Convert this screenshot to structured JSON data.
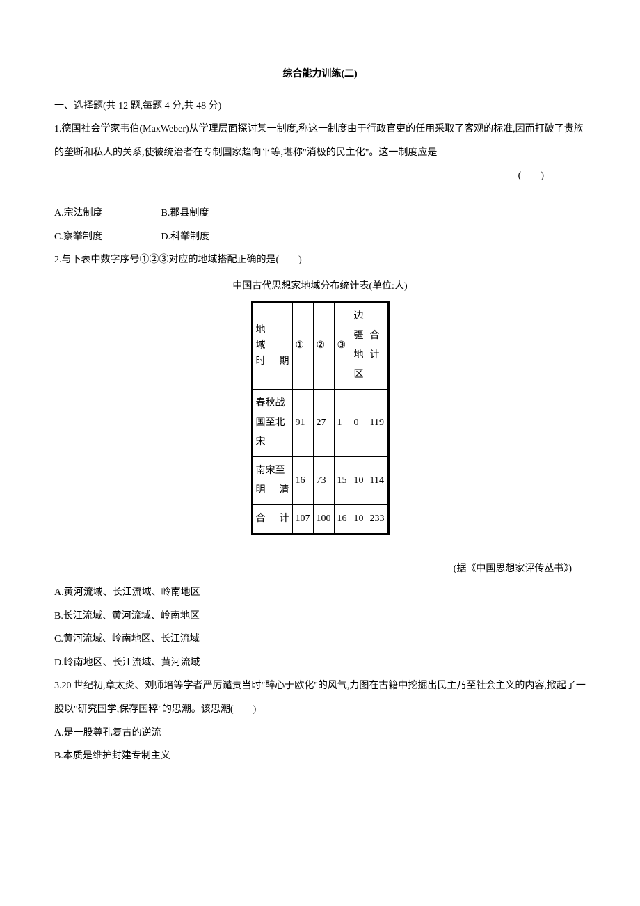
{
  "title": "综合能力训练(二)",
  "section1": "一、选择题(共 12 题,每题 4 分,共 48 分)",
  "q1": {
    "stem": "1.德国社会学家韦伯(MaxWeber)从学理层面探讨某一制度,称这一制度由于行政官吏的任用采取了客观的标准,因而打破了贵族的垄断和私人的关系,使被统治者在专制国家趋向平等,堪称\"消极的民主化\"。这一制度应是",
    "bracket": "(　　)",
    "optA": "A.宗法制度",
    "optB": "B.郡县制度",
    "optC": "C.察举制度",
    "optD": "D.科举制度"
  },
  "q2": {
    "stem": "2.与下表中数字序号①②③对应的地域搭配正确的是(　　)",
    "caption": "中国古代思想家地域分布统计表(单位:人)",
    "header": {
      "diag_top": "地",
      "diag_bottom_1": "域",
      "diag_bottom_2": "时期",
      "c1": "①",
      "c2": "②",
      "c3": "③",
      "c4": "边疆地区",
      "c5": "合计"
    },
    "rows": [
      {
        "label": "春秋战国至北宋",
        "c1": "91",
        "c2": "27",
        "c3": "1",
        "c4": "0",
        "c5": "119"
      },
      {
        "label": "南宋至明清",
        "c1": "16",
        "c2": "73",
        "c3": "15",
        "c4": "10",
        "c5": "114"
      },
      {
        "label": "合计",
        "c1": "107",
        "c2": "100",
        "c3": "16",
        "c4": "10",
        "c5": "233"
      }
    ],
    "source": "(据《中国思想家评传丛书》)",
    "optA": "A.黄河流域、长江流域、岭南地区",
    "optB": "B.长江流域、黄河流域、岭南地区",
    "optC": "C.黄河流域、岭南地区、长江流域",
    "optD": "D.岭南地区、长江流域、黄河流域"
  },
  "q3": {
    "stem": "3.20 世纪初,章太炎、刘师培等学者严厉谴责当时\"醉心于欧化\"的风气,力图在古籍中挖掘出民主乃至社会主义的内容,掀起了一股以\"研究国学,保存国粹\"的思潮。该思潮(　　)",
    "optA": "A.是一股尊孔复古的逆流",
    "optB": "B.本质是维护封建专制主义"
  }
}
